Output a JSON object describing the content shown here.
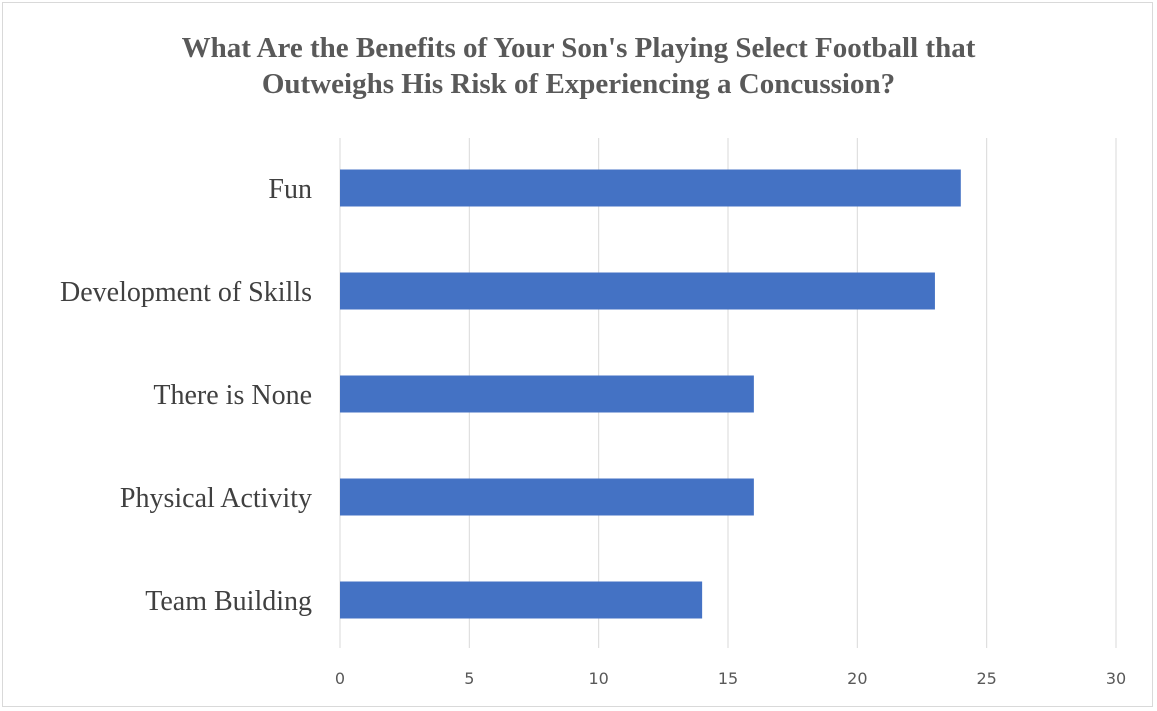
{
  "chart_data": {
    "type": "bar",
    "orientation": "horizontal",
    "title_lines": [
      "What Are the Benefits of Your Son's Playing Select Football that",
      "Outweighs His Risk of Experiencing a Concussion?"
    ],
    "categories": [
      "Fun",
      "Development of Skills",
      "There is None",
      "Physical Activity",
      "Team Building"
    ],
    "values": [
      24,
      23,
      16,
      16,
      14
    ],
    "xlim": [
      0,
      30
    ],
    "xticks": [
      0,
      5,
      10,
      15,
      20,
      25,
      30
    ],
    "grid": true,
    "legend": "none",
    "bar_color": "#4472C4",
    "grid_color": "#D9D9D9"
  }
}
